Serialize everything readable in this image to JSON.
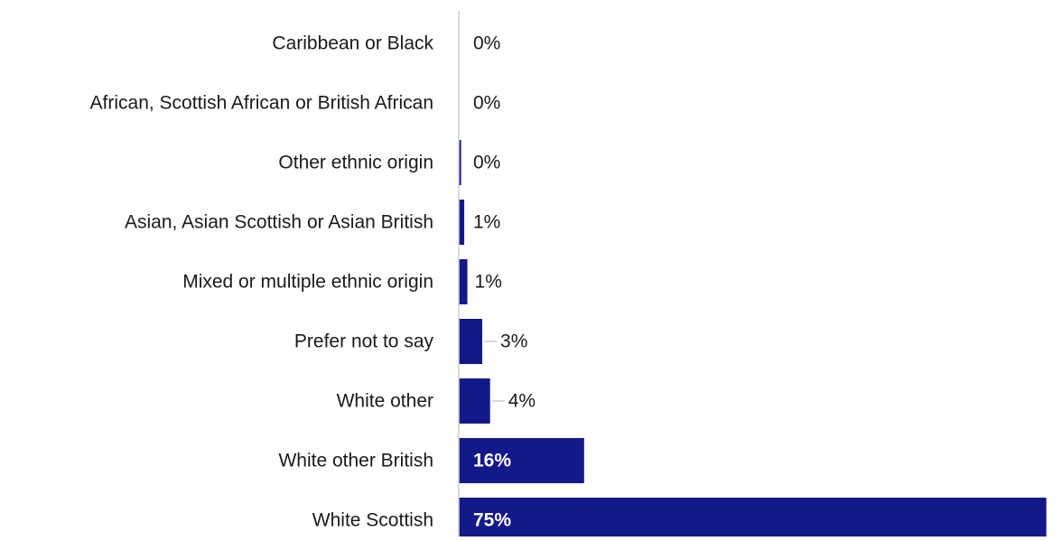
{
  "chart_data": {
    "type": "bar",
    "orientation": "horizontal",
    "categories": [
      "Caribbean or Black",
      "African, Scottish African or British African",
      "Other ethnic origin",
      "Asian, Asian Scottish or Asian British",
      "Mixed or multiple ethnic origin",
      "Prefer not to say",
      "White other",
      "White other British",
      "White Scottish"
    ],
    "values": [
      0,
      0,
      0.3,
      0.7,
      1.1,
      3,
      4,
      16,
      75
    ],
    "value_labels": [
      "0%",
      "0%",
      "0%",
      "1%",
      "1%",
      "3%",
      "4%",
      "16%",
      "75%"
    ],
    "xlim": [
      0,
      77
    ],
    "bar_color": "#14198a",
    "axis_color": "#d0d0d0",
    "label_color": "#1a1a1a",
    "inside_label_color": "#ffffff",
    "grid": false,
    "legend": "none"
  }
}
